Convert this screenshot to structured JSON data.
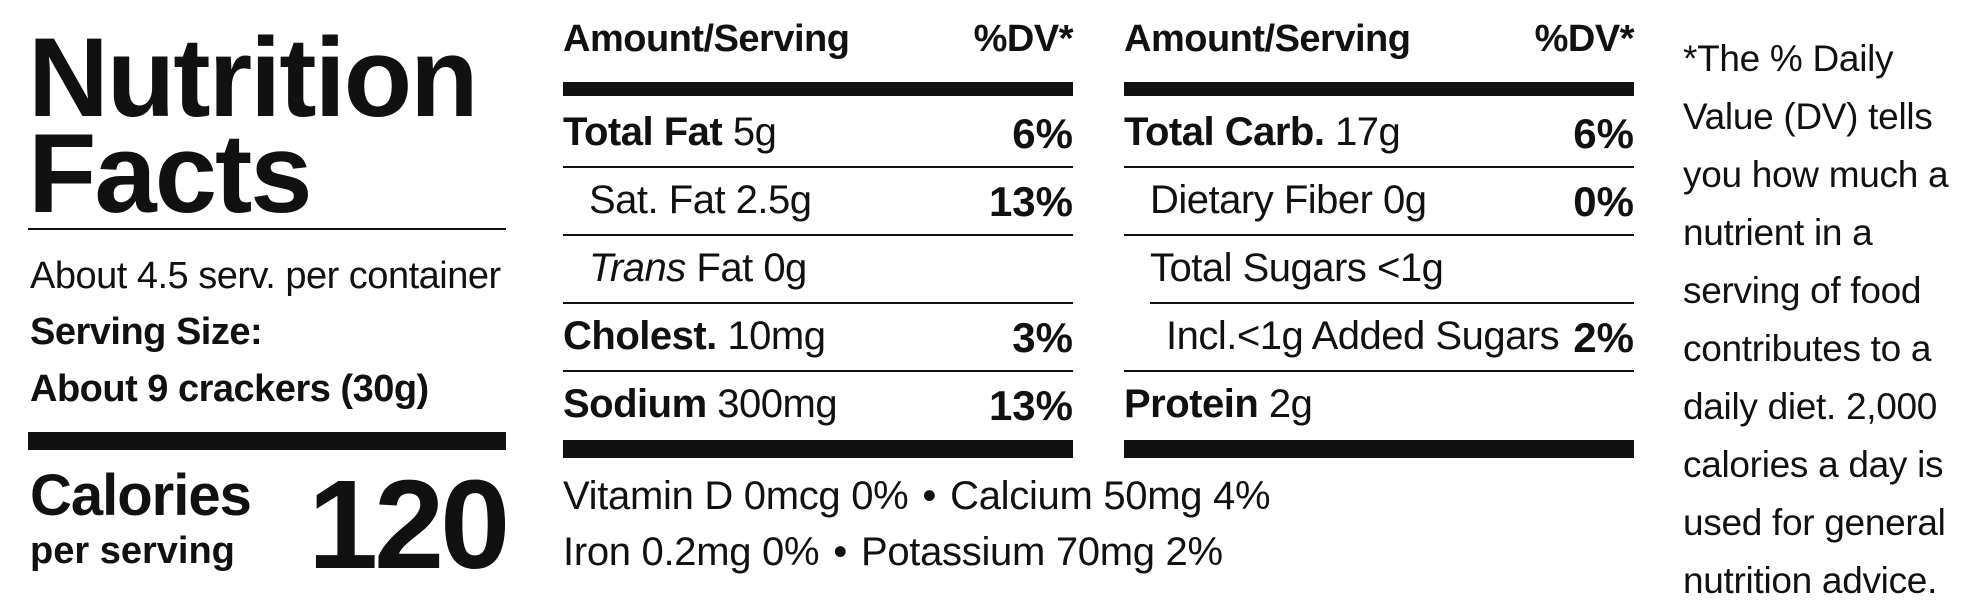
{
  "title": {
    "line1": "Nutrition",
    "line2": "Facts"
  },
  "servings": {
    "per_container": "About 4.5 serv. per container",
    "size_label": "Serving Size:",
    "size_value": "About 9 crackers (30g)"
  },
  "calories": {
    "label": "Calories",
    "sub": "per serving",
    "value": "120"
  },
  "left_table": {
    "header_amount": "Amount/Serving",
    "header_dv": "%DV*",
    "rows": [
      {
        "name": "Total Fat",
        "amount": "5g",
        "dv": "6%"
      },
      {
        "name": "Sat. Fat 2.5g",
        "amount": "",
        "dv": "13%"
      },
      {
        "name_italic": "Trans",
        "name": "Fat 0g",
        "amount": "",
        "dv": ""
      },
      {
        "name": "Cholest.",
        "amount": "10mg",
        "dv": "3%"
      },
      {
        "name": "Sodium",
        "amount": "300mg",
        "dv": "13%"
      }
    ]
  },
  "right_table": {
    "header_amount": "Amount/Serving",
    "header_dv": "%DV*",
    "rows": [
      {
        "name": "Total Carb.",
        "amount": "17g",
        "dv": "6%"
      },
      {
        "name": "Dietary Fiber 0g",
        "amount": "",
        "dv": "0%"
      },
      {
        "name": "Total Sugars <1g",
        "amount": "",
        "dv": ""
      },
      {
        "name": "Incl.<1g Added Sugars",
        "amount": "",
        "dv": "2%"
      },
      {
        "name": "Protein",
        "amount": "2g",
        "dv": ""
      }
    ]
  },
  "vitamins": {
    "line1_a": "Vitamin D 0mcg 0%",
    "line1_b": "Calcium 50mg 4%",
    "line2_a": "Iron 0.2mg 0%",
    "line2_b": "Potassium 70mg 2%",
    "separator": "•"
  },
  "footnote": "*The % Daily\nValue (DV) tells\nyou how much a\nnutrient in a\nserving of food\ncontributes to a\ndaily diet. 2,000\ncalories a day is\nused for general\nnutrition advice."
}
